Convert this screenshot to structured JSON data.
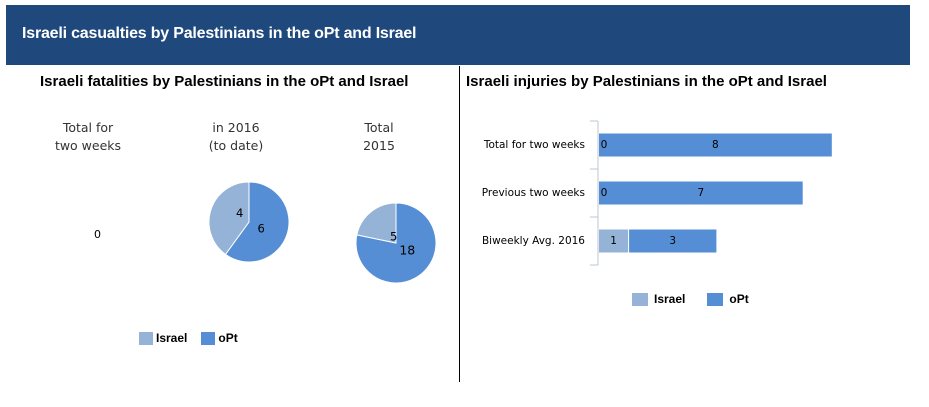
{
  "banner": {
    "title": "Israeli casualties by Palestinians in the oPt and Israel"
  },
  "colors": {
    "banner": "#1f497d",
    "israel": "#95b3d7",
    "opt": "#558ed5"
  },
  "fatalities": {
    "title": "Israeli fatalities by Palestinians in the oPt and Israel",
    "panels": [
      {
        "label_line1": "Total for",
        "label_line2": "two weeks",
        "zero_text": "0"
      },
      {
        "label_line1": "in 2016",
        "label_line2": "(to date)"
      },
      {
        "label_line1": "Total",
        "label_line2": "2015"
      }
    ],
    "legend": {
      "israel": "Israel",
      "opt": "oPt"
    }
  },
  "injuries": {
    "title": "Israeli injuries by Palestinians in the oPt and Israel",
    "legend": {
      "israel": "Israel",
      "opt": "oPt"
    }
  },
  "chart_data": [
    {
      "type": "pie",
      "title": "Total for two weeks",
      "series": [
        {
          "name": "Israel",
          "value": 0
        },
        {
          "name": "oPt",
          "value": 0
        }
      ]
    },
    {
      "type": "pie",
      "title": "in 2016 (to date)",
      "series": [
        {
          "name": "Israel",
          "value": 4
        },
        {
          "name": "oPt",
          "value": 6
        }
      ]
    },
    {
      "type": "pie",
      "title": "Total 2015",
      "series": [
        {
          "name": "Israel",
          "value": 5
        },
        {
          "name": "oPt",
          "value": 18
        }
      ]
    },
    {
      "type": "bar",
      "orientation": "horizontal",
      "stacked": true,
      "categories": [
        "Total for two weeks",
        "Previous two weeks",
        "Biweekly Avg. 2016"
      ],
      "series": [
        {
          "name": "Israel",
          "values": [
            0,
            0,
            1
          ]
        },
        {
          "name": "oPt",
          "values": [
            8,
            7,
            3
          ]
        }
      ],
      "legend_position": "bottom"
    }
  ]
}
